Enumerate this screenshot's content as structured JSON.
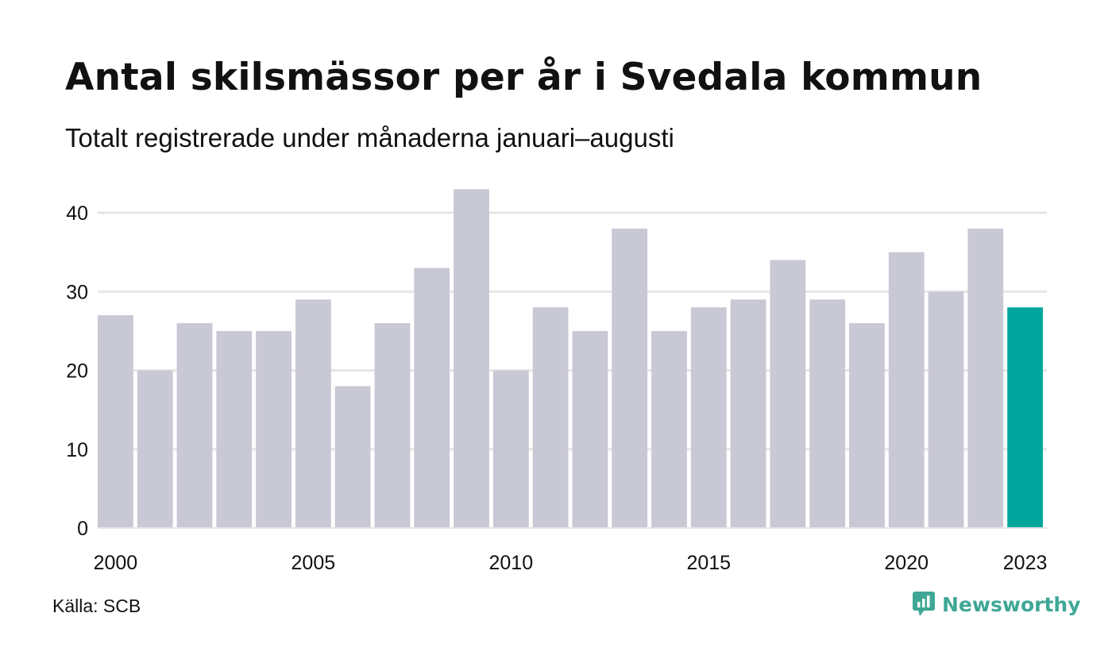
{
  "title": "Antal skilsmässor per år i Svedala kommun",
  "subtitle": "Totalt registrerade under månaderna januari–augusti",
  "source": "Källa: SCB",
  "brand": {
    "name": "Newsworthy",
    "icon": "newsworthy-logo-icon",
    "color": "#3fa796"
  },
  "colors": {
    "bar": "#c9c8d5",
    "highlight": "#00a69c",
    "grid": "#e6e6e6"
  },
  "chart_data": {
    "type": "bar",
    "title": "Antal skilsmässor per år i Svedala kommun",
    "subtitle": "Totalt registrerade under månaderna januari–augusti",
    "x": [
      2000,
      2001,
      2002,
      2003,
      2004,
      2005,
      2006,
      2007,
      2008,
      2009,
      2010,
      2011,
      2012,
      2013,
      2014,
      2015,
      2016,
      2017,
      2018,
      2019,
      2020,
      2021,
      2022,
      2023
    ],
    "values": [
      27,
      20,
      26,
      25,
      25,
      29,
      18,
      26,
      33,
      43,
      20,
      28,
      25,
      38,
      25,
      28,
      29,
      34,
      29,
      26,
      35,
      30,
      38,
      28
    ],
    "highlight": 2023,
    "x_tick_labels": [
      "2000",
      "2005",
      "2010",
      "2015",
      "2020",
      "2023"
    ],
    "y_ticks": [
      0,
      10,
      20,
      30,
      40
    ],
    "ylim": [
      0,
      43
    ],
    "xlabel": "",
    "ylabel": "",
    "grid": true,
    "legend": "none"
  }
}
